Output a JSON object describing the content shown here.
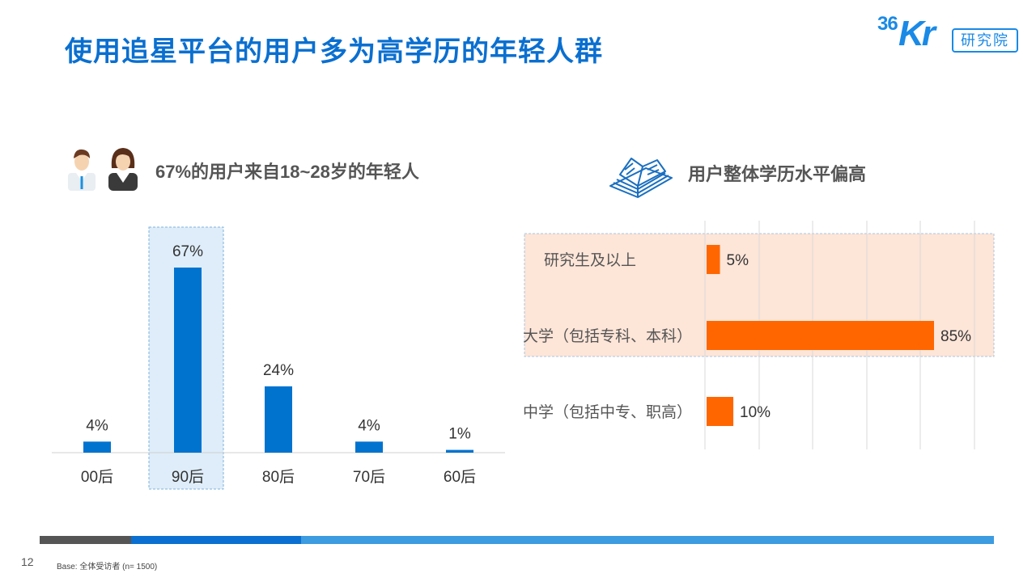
{
  "page": {
    "title": "使用追星平台的用户多为高学历的年轻人群",
    "page_number": "12",
    "footnote": "Base: 全体受访者 (n= 1500)"
  },
  "logo": {
    "mark_36": "36",
    "mark_kr": "Kr",
    "box_text": "研究院",
    "color": "#1a8ae6"
  },
  "icons": {
    "people": "male-female-users-icon",
    "book": "open-book-icon"
  },
  "colors": {
    "title": "#0a6fd0",
    "bar_blue": "#0073cf",
    "bar_orange": "#ff6600",
    "highlight_blue": "#deedf9",
    "highlight_orange": "#fde5d8"
  },
  "chart_data": [
    {
      "type": "bar",
      "title": "67%的用户来自18~28岁的年轻人",
      "categories": [
        "00后",
        "90后",
        "80后",
        "70后",
        "60后"
      ],
      "values": [
        4,
        67,
        24,
        4,
        1
      ],
      "value_labels": [
        "4%",
        "67%",
        "24%",
        "4%",
        "1%"
      ],
      "unit": "%",
      "ylim": [
        0,
        70
      ],
      "highlight_category": "90后",
      "grid": false
    },
    {
      "type": "bar",
      "orientation": "horizontal",
      "title": "用户整体学历水平偏高",
      "categories": [
        "研究生及以上",
        "大学（包括专科、本科）",
        "中学（包括中专、职高）"
      ],
      "values": [
        5,
        85,
        10
      ],
      "value_labels": [
        "5%",
        "85%",
        "10%"
      ],
      "unit": "%",
      "xlim": [
        0,
        100
      ],
      "highlight_categories": [
        "研究生及以上",
        "大学（包括专科、本科）"
      ],
      "grid": true
    }
  ]
}
